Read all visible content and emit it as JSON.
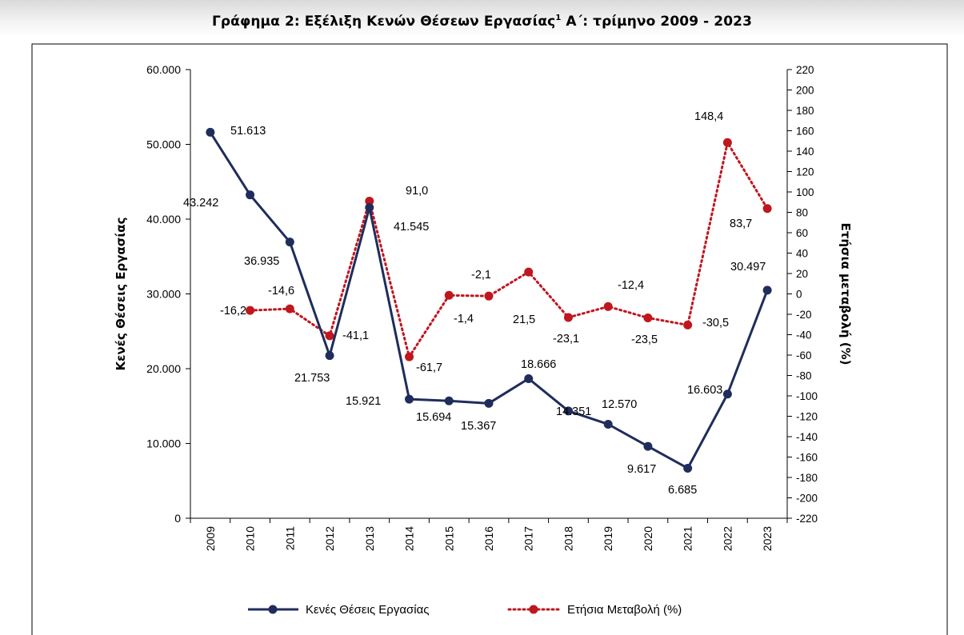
{
  "page": {
    "title_main": "Γράφημα 2: Εξέλιξη Κενών Θέσεων Εργασίας",
    "title_sup": "1",
    "title_rest": " Α΄: τρίμηνο 2009 - 2023"
  },
  "chart_data": {
    "type": "line",
    "title": "Γράφημα 2: Εξέλιξη Κενών Θέσεων Εργασίας1 Α΄: τρίμηνο 2009 - 2023",
    "x": [
      "2009",
      "2010",
      "2011",
      "2012",
      "2013",
      "2014",
      "2015",
      "2016",
      "2017",
      "2018",
      "2019",
      "2020",
      "2021",
      "2022",
      "2023"
    ],
    "ylabel": "Κενές Θέσεις Εργασίας",
    "y2label": "Ετήσια μεταβολή (%)",
    "ylim": [
      0,
      60000
    ],
    "y2lim": [
      -220,
      220
    ],
    "yticks": [
      "0",
      "10.000",
      "20.000",
      "30.000",
      "40.000",
      "50.000",
      "60.000"
    ],
    "y2ticks": [
      "220",
      "200",
      "180",
      "160",
      "140",
      "120",
      "100",
      "80",
      "60",
      "40",
      "20",
      "0",
      "-20",
      "-40",
      "-60",
      "-80",
      "-100",
      "-120",
      "-140",
      "-160",
      "-180",
      "-200",
      "-220"
    ],
    "grid": false,
    "legend_position": "bottom",
    "series": [
      {
        "name": "Κενές Θέσεις Εργασίας",
        "axis": "left",
        "color": "#1f2d5c",
        "style": "solid",
        "values": [
          51613,
          43242,
          36935,
          21753,
          41545,
          15921,
          15694,
          15367,
          18666,
          14351,
          12570,
          9617,
          6685,
          16603,
          30497
        ],
        "labels": [
          "51.613",
          "43.242",
          "36.935",
          "21.753",
          "41.545",
          "15.921",
          "15.694",
          "15.367",
          "18.666",
          "14.351",
          "12.570",
          "9.617",
          "6.685",
          "16.603",
          "30.497"
        ]
      },
      {
        "name": "Ετήσια Μεταβολή (%)",
        "axis": "right",
        "color": "#c0161e",
        "style": "dotted",
        "values": [
          null,
          -16.2,
          -14.6,
          -41.1,
          91.0,
          -61.7,
          -1.4,
          -2.1,
          21.5,
          -23.1,
          -12.4,
          -23.5,
          -30.5,
          148.4,
          83.7
        ],
        "labels": [
          "",
          "-16,2",
          "-14,6",
          "-41,1",
          "91,0",
          "-61,7",
          "-1,4",
          "-2,1",
          "21,5",
          "-23,1",
          "-12,4",
          "-23,5",
          "-30,5",
          "148,4",
          "83,7"
        ]
      }
    ]
  }
}
